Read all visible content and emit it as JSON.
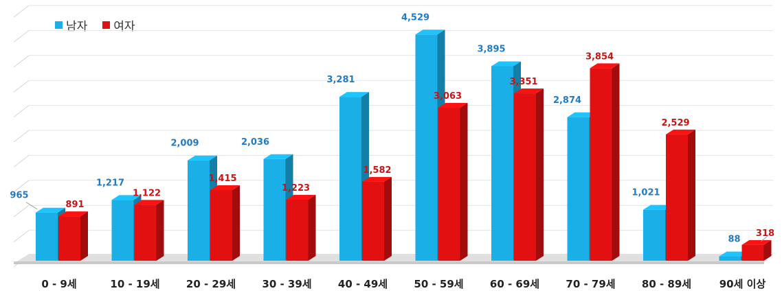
{
  "chart_data": {
    "type": "bar",
    "categories": [
      "0 - 9세",
      "10 - 19세",
      "20 - 29세",
      "30 - 39세",
      "40 - 49세",
      "50 - 59세",
      "60 - 69세",
      "70 - 79세",
      "80 - 89세",
      "90세 이상"
    ],
    "series": [
      {
        "name": "남자",
        "color": "#1aafe6",
        "label_color": "#1f7cc4",
        "values": [
          965,
          1217,
          2009,
          2036,
          3281,
          4529,
          3895,
          2874,
          1021,
          88
        ],
        "labels": [
          "965",
          "1,217",
          "2,009",
          "2,036",
          "3,281",
          "4,529",
          "3,895",
          "2,874",
          "1,021",
          "88"
        ]
      },
      {
        "name": "여자",
        "color": "#e21010",
        "label_color": "#c81414",
        "values": [
          891,
          1122,
          1415,
          1223,
          1582,
          3063,
          3351,
          3854,
          2529,
          318
        ],
        "labels": [
          "891",
          "1,122",
          "1,415",
          "1,223",
          "1,582",
          "3,063",
          "3,351",
          "3,854",
          "2,529",
          "318"
        ]
      }
    ],
    "ylim": [
      0,
      5000
    ],
    "grid": true,
    "legend": "top-left",
    "style": "3d-columns"
  }
}
